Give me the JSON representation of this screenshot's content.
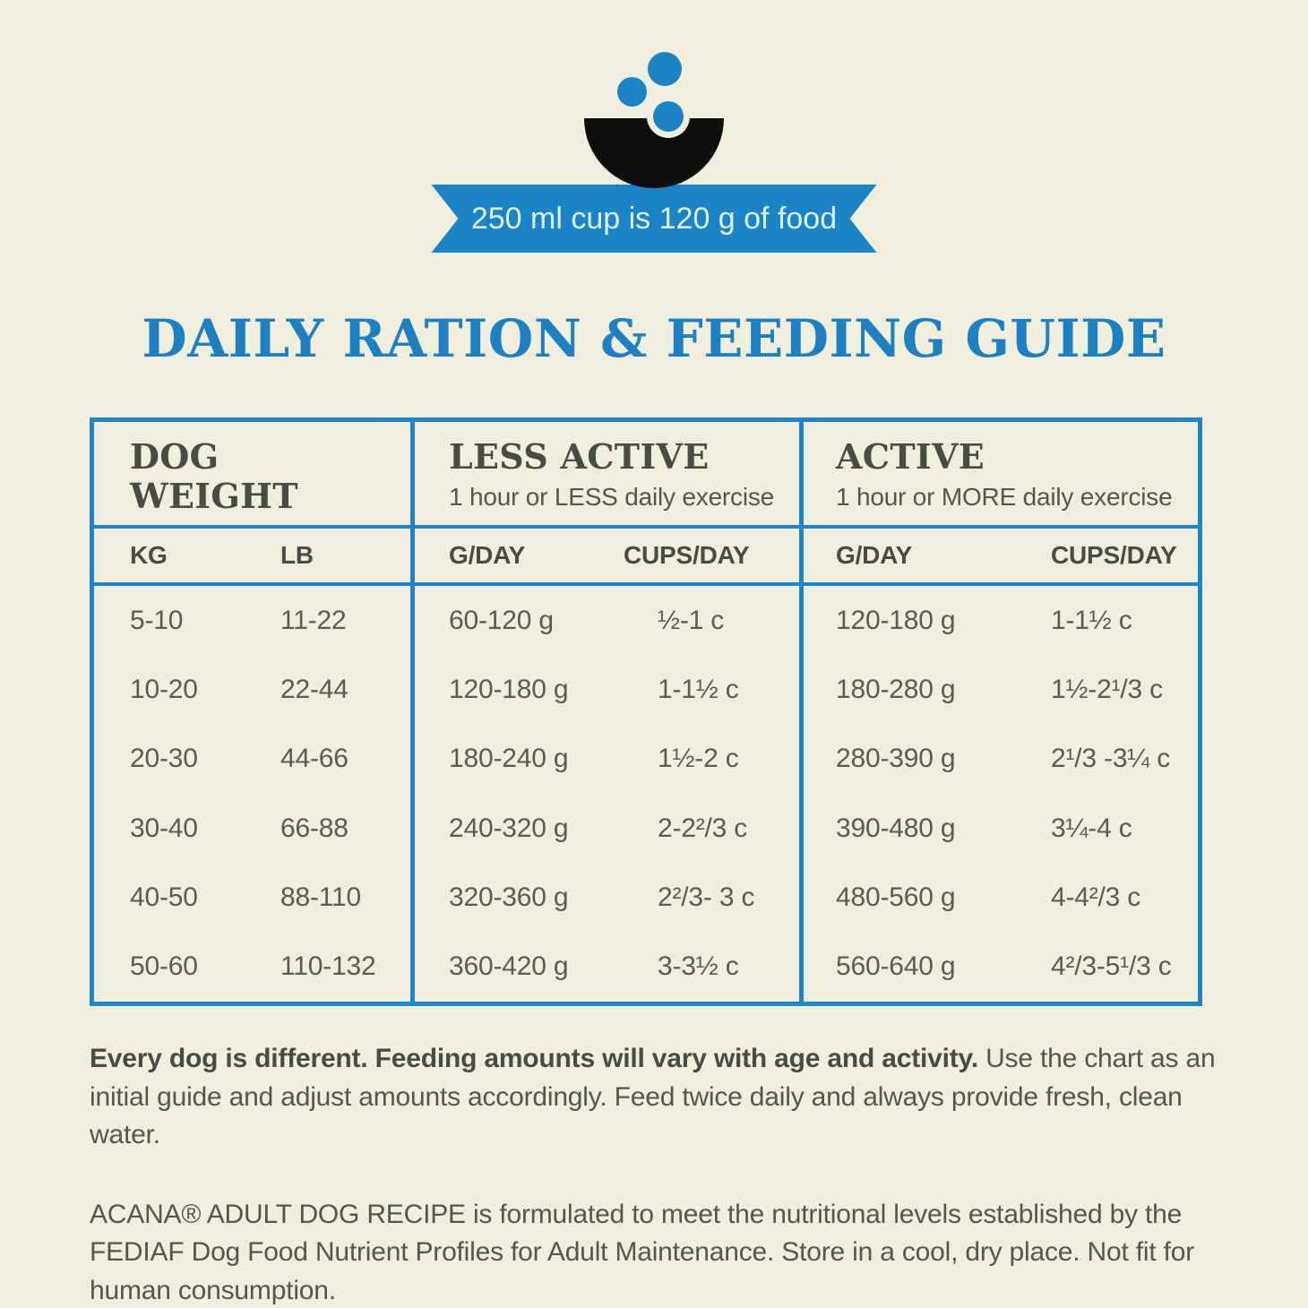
{
  "colors": {
    "background": "#f0eedd",
    "accent_blue": "#1e86c8",
    "title_blue": "#1d80c3",
    "heading_text": "#4a4b42",
    "body_text": "#55564c",
    "bowl_black": "#0e0e0c",
    "ribbon_text": "#ddf2fc"
  },
  "banner": {
    "icon": "bowl-with-kibble",
    "label": "250 ml cup is 120 g of food"
  },
  "title": "DAILY RATION & FEEDING GUIDE",
  "table": {
    "groups": [
      {
        "title": "DOG WEIGHT",
        "subtitle": "",
        "columns": [
          "KG",
          "LB"
        ]
      },
      {
        "title": "LESS ACTIVE",
        "subtitle": "1 hour or LESS daily exercise",
        "columns": [
          "G/DAY",
          "CUPS/DAY"
        ]
      },
      {
        "title": "ACTIVE",
        "subtitle": "1 hour or MORE daily exercise",
        "columns": [
          "G/DAY",
          "CUPS/DAY"
        ]
      }
    ],
    "rows": [
      [
        "5-10",
        "11-22",
        "60-120 g",
        "½-1 c",
        "120-180 g",
        "1-1½ c"
      ],
      [
        "10-20",
        "22-44",
        "120-180 g",
        "1-1½ c",
        "180-280 g",
        "1½-2¹/3 c"
      ],
      [
        "20-30",
        "44-66",
        "180-240 g",
        "1½-2 c",
        "280-390 g",
        "2¹/3 -3¼ c"
      ],
      [
        "30-40",
        "66-88",
        "240-320 g",
        "2-2²/3 c",
        "390-480 g",
        "3¼-4 c"
      ],
      [
        "40-50",
        "88-110",
        "320-360 g",
        "2²/3- 3 c",
        "480-560 g",
        "4-4²/3 c"
      ],
      [
        "50-60",
        "110-132",
        "360-420 g",
        "3-3½ c",
        "560-640 g",
        "4²/3-5¹/3 c"
      ]
    ]
  },
  "notes": [
    {
      "bold": "Every dog is different. Feeding amounts will vary with age and activity.",
      "text": "Use the chart as an initial guide and adjust amounts accordingly. Feed twice daily and always provide fresh, clean water."
    },
    {
      "bold": "",
      "text": "ACANA® ADULT DOG RECIPE is formulated to meet the nutritional levels established by the FEDIAF Dog Food Nutrient Profiles for Adult Maintenance. Store in a cool, dry place. Not fit for human consumption."
    }
  ]
}
